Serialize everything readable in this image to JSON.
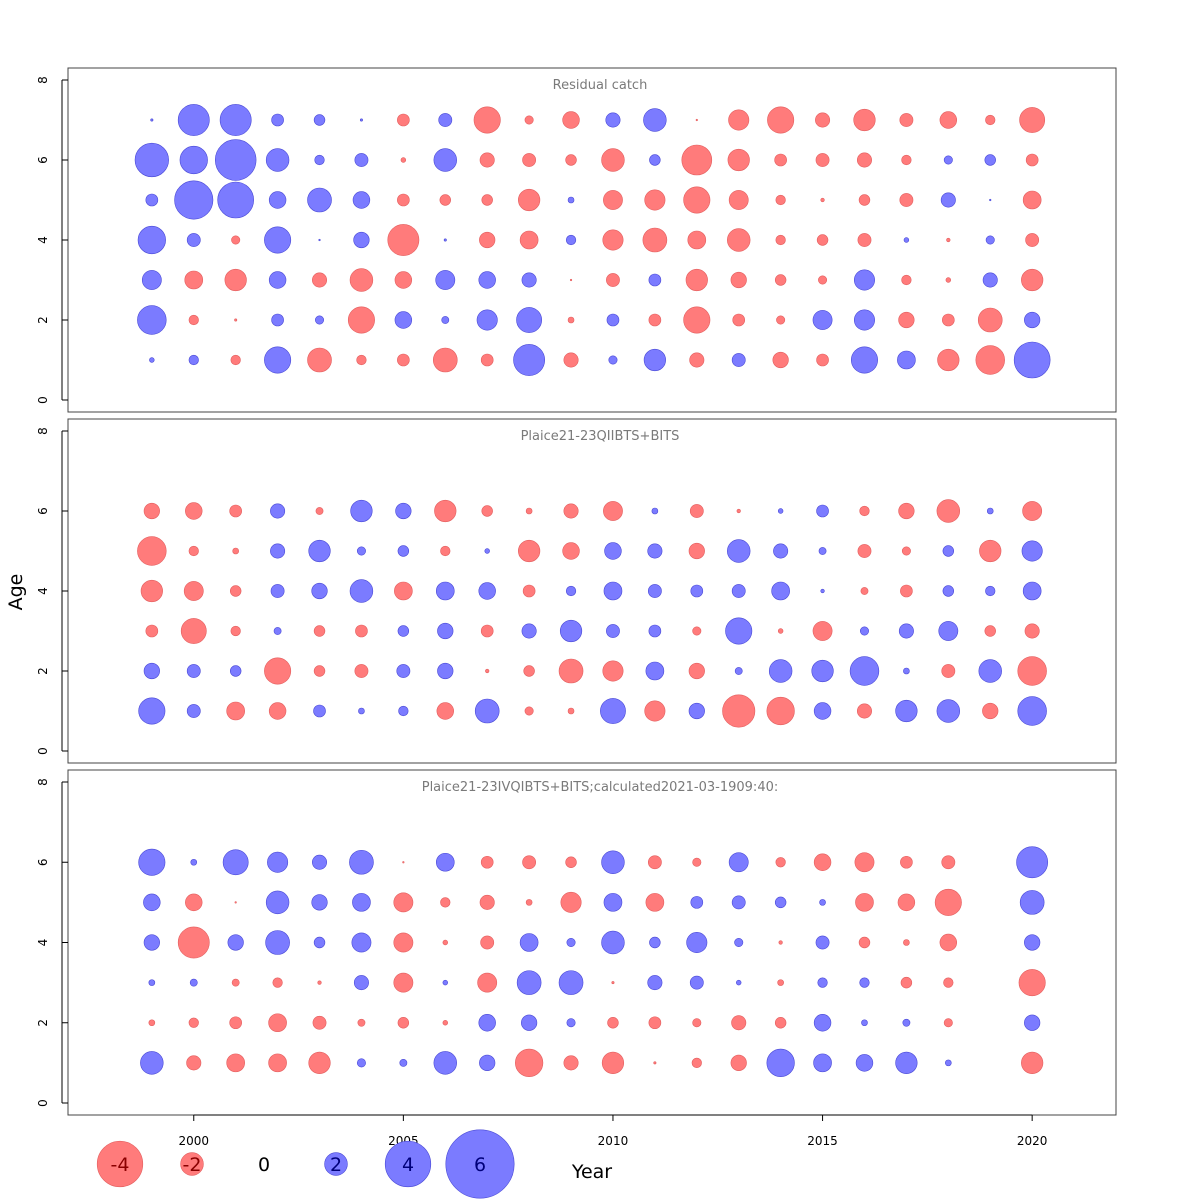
{
  "chart_data": {
    "type": "scatter",
    "subtype": "bubble-residuals",
    "xlabel": "Year",
    "ylabel": "Age",
    "xlim": [
      1997.0,
      2022.0
    ],
    "ylim": [
      0,
      8
    ],
    "x_ticks": [
      2000,
      2005,
      2010,
      2015,
      2020
    ],
    "y_ticks": [
      0,
      2,
      4,
      6,
      8
    ],
    "colors": {
      "positive": "#7b7bff",
      "negative": "#ff7b7b",
      "positive_edge": "#4a4ad6",
      "negative_edge": "#e35f5f"
    },
    "legend": {
      "placement": "bottom-left",
      "values": [
        -4,
        -2,
        0,
        2,
        4,
        6
      ],
      "labels": [
        "-4",
        "-2",
        "0",
        "2",
        "4",
        "6"
      ]
    },
    "panels": [
      {
        "title": "Residual catch",
        "years": [
          1999,
          2000,
          2001,
          2002,
          2003,
          2004,
          2005,
          2006,
          2007,
          2008,
          2009,
          2010,
          2011,
          2012,
          2013,
          2014,
          2015,
          2016,
          2017,
          2018,
          2019,
          2020
        ],
        "ages": [
          1,
          2,
          3,
          4,
          5,
          6,
          7
        ],
        "residuals": {
          "1": [
            0.4,
            0.8,
            -0.8,
            2.2,
            -2.0,
            -0.8,
            -1.0,
            -2.0,
            -1.0,
            2.6,
            -1.2,
            0.7,
            1.8,
            -1.2,
            1.1,
            -1.3,
            -1.0,
            2.2,
            1.5,
            -1.8,
            -2.4,
            3.0
          ],
          "2": [
            2.4,
            -0.8,
            -0.2,
            1.0,
            0.7,
            -2.2,
            1.4,
            0.6,
            1.7,
            2.1,
            -0.5,
            1.0,
            -1.0,
            -2.2,
            -1.0,
            -0.7,
            1.6,
            1.7,
            -1.3,
            -1.0,
            -2.0,
            1.3
          ],
          "3": [
            1.6,
            -1.5,
            -1.8,
            1.4,
            -1.2,
            -1.9,
            -1.4,
            1.6,
            1.4,
            1.2,
            -0.1,
            -1.1,
            1.0,
            -1.8,
            -1.3,
            -0.9,
            -0.7,
            1.7,
            -0.8,
            -0.4,
            1.2,
            -1.8
          ],
          "4": [
            2.3,
            1.1,
            -0.7,
            2.2,
            0.1,
            1.3,
            -2.6,
            0.2,
            -1.3,
            -1.5,
            0.8,
            -1.7,
            -2.0,
            -1.5,
            -1.9,
            -0.8,
            -0.9,
            -1.1,
            0.4,
            -0.3,
            0.7,
            -1.1
          ],
          "5": [
            1.0,
            3.2,
            3.0,
            1.4,
            2.0,
            1.4,
            -1.0,
            -0.9,
            -0.9,
            -1.8,
            0.5,
            -1.6,
            -1.7,
            -2.2,
            -1.6,
            -0.8,
            -0.3,
            -0.9,
            -1.1,
            1.2,
            0.1,
            -1.5
          ],
          "6": [
            2.8,
            2.3,
            3.4,
            1.9,
            0.8,
            1.1,
            -0.4,
            1.9,
            -1.2,
            -1.1,
            -0.9,
            -1.9,
            0.9,
            -2.5,
            -1.8,
            -1.0,
            -1.1,
            -1.2,
            -0.8,
            0.7,
            0.9,
            -1.0
          ],
          "7": [
            0.2,
            2.6,
            2.6,
            1.0,
            0.9,
            0.2,
            -1.0,
            1.1,
            -2.2,
            -0.7,
            -1.4,
            1.2,
            1.9,
            -0.1,
            -1.7,
            -2.2,
            -1.2,
            -1.8,
            -1.1,
            -1.4,
            -0.8,
            -2.1
          ]
        }
      },
      {
        "title": "Plaice21-23QIIBTS+BITS",
        "years": [
          1999,
          2000,
          2001,
          2002,
          2003,
          2004,
          2005,
          2006,
          2007,
          2008,
          2009,
          2010,
          2011,
          2012,
          2013,
          2014,
          2015,
          2016,
          2017,
          2018,
          2019,
          2020
        ],
        "ages": [
          1,
          2,
          3,
          4,
          5,
          6
        ],
        "residuals": {
          "1": [
            2.2,
            1.1,
            -1.5,
            -1.4,
            1.0,
            0.5,
            0.8,
            -1.4,
            2.0,
            -0.7,
            -0.5,
            2.1,
            -1.7,
            1.3,
            -2.7,
            -2.3,
            1.4,
            -1.2,
            1.8,
            1.9,
            -1.3,
            2.4
          ],
          "2": [
            1.3,
            1.1,
            0.9,
            -2.2,
            -0.9,
            -1.1,
            1.1,
            1.3,
            -0.3,
            -0.9,
            -2.0,
            -1.7,
            1.5,
            -1.3,
            0.6,
            1.9,
            1.8,
            2.4,
            0.5,
            -1.1,
            1.9,
            -2.4
          ],
          "3": [
            -1.0,
            -2.1,
            -0.8,
            0.6,
            -0.9,
            -1.0,
            0.9,
            1.3,
            -1.0,
            1.2,
            1.8,
            1.1,
            1.0,
            -0.7,
            2.2,
            -0.4,
            -1.6,
            0.7,
            1.2,
            1.6,
            -0.9,
            -1.2
          ],
          "4": [
            -1.8,
            -1.6,
            -0.9,
            1.1,
            1.3,
            1.9,
            -1.5,
            1.5,
            1.4,
            -1.0,
            0.8,
            1.5,
            1.1,
            1.0,
            1.1,
            1.5,
            0.3,
            -0.6,
            -1.0,
            0.9,
            0.8,
            1.5
          ],
          "5": [
            -2.4,
            -0.8,
            -0.5,
            1.2,
            1.8,
            0.7,
            0.9,
            -0.8,
            0.4,
            -1.8,
            -1.4,
            1.4,
            1.2,
            -1.3,
            1.9,
            1.2,
            0.6,
            -1.1,
            -0.7,
            0.9,
            -1.8,
            1.7
          ],
          "6": [
            -1.3,
            -1.4,
            -1.0,
            1.2,
            -0.6,
            1.8,
            1.3,
            -1.8,
            -0.9,
            -0.5,
            -1.2,
            -1.6,
            0.5,
            -1.1,
            -0.3,
            0.4,
            1.0,
            -0.8,
            -1.3,
            -1.9,
            0.5,
            -1.6
          ]
        }
      },
      {
        "title": "Plaice21-23IVQIBTS+BITS;calculated2021-03-1909:40:",
        "years": [
          1999,
          2000,
          2001,
          2002,
          2003,
          2004,
          2005,
          2006,
          2007,
          2008,
          2009,
          2010,
          2011,
          2012,
          2013,
          2014,
          2015,
          2016,
          2017,
          2018,
          2019,
          2020
        ],
        "ages": [
          1,
          2,
          3,
          4,
          5,
          6
        ],
        "residuals": {
          "1": [
            1.9,
            -1.2,
            -1.5,
            -1.5,
            -1.8,
            0.7,
            0.6,
            1.9,
            1.3,
            -2.3,
            -1.2,
            -1.8,
            -0.2,
            -0.8,
            -1.3,
            2.3,
            1.5,
            1.4,
            1.8,
            0.5,
            null,
            -1.8
          ],
          "2": [
            -0.5,
            -0.8,
            -1.0,
            -1.5,
            -1.1,
            -0.6,
            -0.9,
            -0.4,
            1.4,
            1.3,
            0.7,
            -0.9,
            -1.0,
            -0.7,
            -1.2,
            -0.9,
            1.4,
            0.5,
            0.6,
            -0.7,
            null,
            1.3
          ],
          "3": [
            0.5,
            0.6,
            -0.6,
            -0.8,
            -0.3,
            1.2,
            -1.6,
            0.4,
            -1.6,
            2.0,
            2.0,
            -0.2,
            1.2,
            1.1,
            0.4,
            -0.5,
            0.8,
            0.8,
            -0.9,
            -0.8,
            null,
            -2.2
          ],
          "4": [
            1.3,
            -2.6,
            1.3,
            2.0,
            0.9,
            1.6,
            -1.6,
            -0.4,
            -1.1,
            1.5,
            0.7,
            1.9,
            0.9,
            1.7,
            0.7,
            -0.3,
            1.1,
            -0.9,
            -0.5,
            -1.4,
            null,
            1.3
          ],
          "5": [
            1.4,
            -1.4,
            -0.1,
            1.9,
            1.3,
            1.5,
            -1.6,
            -0.8,
            -1.2,
            -0.5,
            -1.7,
            1.5,
            -1.5,
            1.0,
            1.1,
            0.9,
            0.5,
            -1.5,
            -1.4,
            -2.2,
            null,
            2.0
          ],
          "6": [
            2.2,
            0.5,
            2.1,
            1.7,
            1.2,
            2.0,
            -0.1,
            1.5,
            -1.0,
            -1.1,
            -0.9,
            1.9,
            -1.1,
            -0.7,
            1.6,
            -0.8,
            -1.4,
            -1.6,
            -1.0,
            -1.1,
            null,
            2.6
          ]
        }
      }
    ]
  }
}
